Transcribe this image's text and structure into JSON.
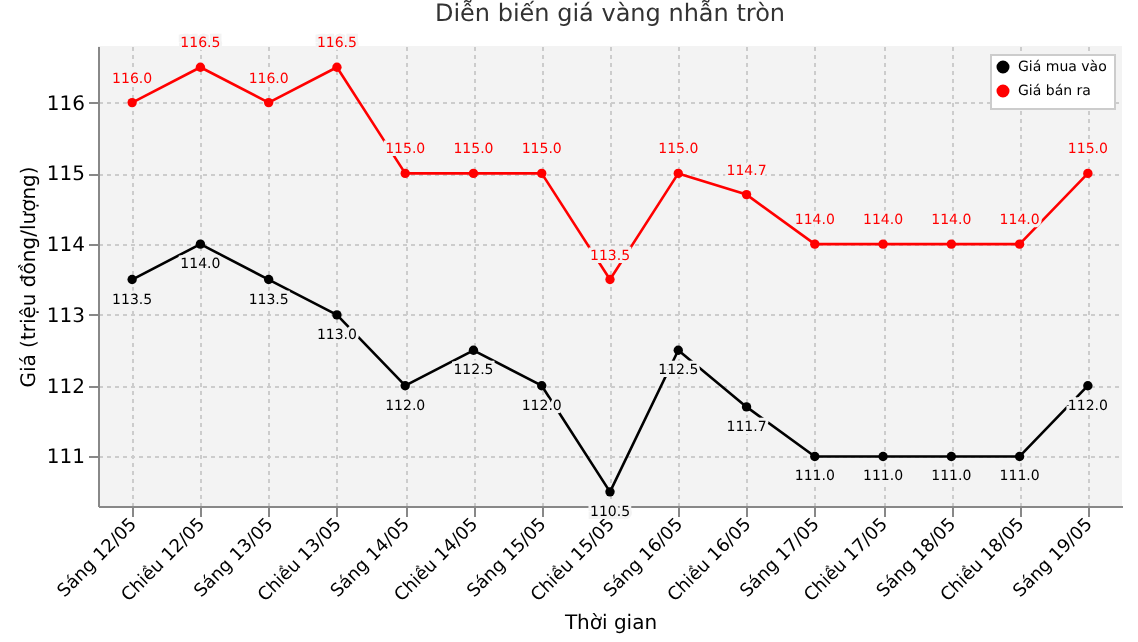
{
  "chart_data": {
    "type": "line",
    "title": "Diễn biến giá vàng nhẫn tròn",
    "xlabel": "Thời gian",
    "ylabel": "Giá (triệu đồng/lượng)",
    "categories": [
      "Sáng 12/05",
      "Chiều 12/05",
      "Sáng 13/05",
      "Chiều 13/05",
      "Sáng 14/05",
      "Chiều 14/05",
      "Sáng 15/05",
      "Chiều 15/05",
      "Sáng 16/05",
      "Chiều 16/05",
      "Sáng 17/05",
      "Chiều 17/05",
      "Sáng 18/05",
      "Chiều 18/05",
      "Sáng 19/05"
    ],
    "series": [
      {
        "name": "Giá mua vào",
        "color": "#000000",
        "values": [
          113.5,
          114.0,
          113.5,
          113.0,
          112.0,
          112.5,
          112.0,
          110.5,
          112.5,
          111.7,
          111.0,
          111.0,
          111.0,
          111.0,
          112.0
        ],
        "value_labels": [
          "113.5",
          "114.0",
          "113.5",
          "113.0",
          "112.0",
          "112.5",
          "112.0",
          "110.5",
          "112.5",
          "111.7",
          "111.0",
          "111.0",
          "111.0",
          "111.0",
          "112.0"
        ]
      },
      {
        "name": "Giá bán ra",
        "color": "#ff0000",
        "values": [
          116.0,
          116.5,
          116.0,
          116.5,
          115.0,
          115.0,
          115.0,
          113.5,
          115.0,
          114.7,
          114.0,
          114.0,
          114.0,
          114.0,
          115.0
        ],
        "value_labels": [
          "116.0",
          "116.5",
          "116.0",
          "116.5",
          "115.0",
          "115.0",
          "115.0",
          "113.5",
          "115.0",
          "114.7",
          "114.0",
          "114.0",
          "114.0",
          "114.0",
          "115.0"
        ]
      }
    ],
    "ylim": [
      110.3,
      116.8
    ],
    "yticks": [
      111,
      112,
      113,
      114,
      115,
      116
    ],
    "grid": true,
    "legend": "top right",
    "marker": "circle",
    "line_style": "solid"
  }
}
